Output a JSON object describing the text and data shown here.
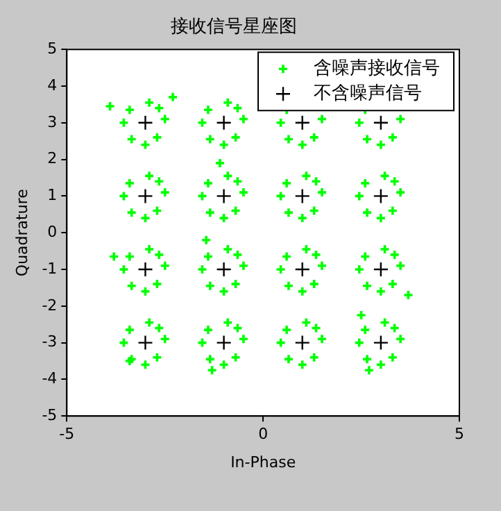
{
  "chart_data": {
    "type": "scatter",
    "title": "接收信号星座图",
    "xlabel": "In-Phase",
    "ylabel": "Quadrature",
    "xlim": [
      -5,
      5
    ],
    "xticks": [
      -5,
      0,
      5
    ],
    "ylim": [
      -5,
      5
    ],
    "yticks": [
      -5,
      -4,
      -3,
      -2,
      -1,
      0,
      1,
      2,
      3,
      4,
      5
    ],
    "grid": false,
    "legend": "top right",
    "series": [
      {
        "name": "含噪声接收信号",
        "color": "#00ff00",
        "marker": "cross",
        "x": [
          -2.5,
          -3.55,
          -2.9,
          -3,
          -2.65,
          -3.4,
          -2.7,
          -3.35,
          -0.5,
          -1.55,
          -0.9,
          -1,
          -0.65,
          -1.4,
          -0.7,
          -1.35,
          1.5,
          0.45,
          1,
          0.6,
          1.3,
          0.65,
          3.5,
          2.45,
          3,
          2.6,
          3.3,
          2.65,
          -2.5,
          -3.55,
          -2.9,
          -3,
          -2.65,
          -3.4,
          -2.7,
          -3.35,
          -0.5,
          -1.55,
          -0.9,
          -1,
          -0.65,
          -1.4,
          -0.7,
          -1.35,
          1.5,
          0.45,
          1.1,
          1,
          1.35,
          0.6,
          1.3,
          0.65,
          3.5,
          2.45,
          3.1,
          3,
          3.35,
          2.6,
          3.3,
          2.65,
          -2.5,
          -3.55,
          -2.9,
          -3,
          -2.65,
          -3.4,
          -2.7,
          -3.35,
          -0.5,
          -1.55,
          -0.9,
          -1,
          -0.65,
          -1.4,
          -0.7,
          -1.35,
          1.5,
          0.45,
          1.1,
          1,
          1.35,
          0.6,
          1.3,
          0.65,
          3.5,
          2.45,
          3.1,
          3,
          3.35,
          2.6,
          3.3,
          2.65,
          -2.5,
          -3.55,
          -2.9,
          -3,
          -2.65,
          -3.4,
          -2.7,
          -3.35,
          -0.5,
          -1.55,
          -0.9,
          -1,
          -0.65,
          -1.4,
          -0.7,
          -1.35,
          1.5,
          0.45,
          1.1,
          1,
          1.35,
          0.6,
          1.3,
          0.65,
          3.5,
          2.45,
          3.1,
          3,
          3.35,
          2.6,
          3.3,
          2.65,
          -3.9,
          -2.3,
          -1.1,
          -1.45,
          3.7,
          2.5,
          -3.8,
          -3.4,
          -1.3,
          2.7
        ],
        "values": [
          3.1,
          3,
          3.55,
          2.4,
          3.4,
          3.35,
          2.6,
          2.55,
          3.1,
          3,
          3.55,
          2.4,
          3.4,
          3.35,
          2.6,
          2.55,
          3.1,
          3,
          2.4,
          3.35,
          2.6,
          2.55,
          3.1,
          3,
          2.4,
          3.35,
          2.6,
          2.55,
          1.1,
          1,
          1.55,
          0.4,
          1.4,
          1.35,
          0.6,
          0.55,
          1.1,
          1,
          1.55,
          0.4,
          1.4,
          1.35,
          0.6,
          0.55,
          1.1,
          1,
          1.55,
          0.4,
          1.4,
          1.35,
          0.6,
          0.55,
          1.1,
          1,
          1.55,
          0.4,
          1.4,
          1.35,
          0.6,
          0.55,
          -0.9,
          -1,
          -0.45,
          -1.6,
          -0.6,
          -0.65,
          -1.4,
          -1.45,
          -0.9,
          -1,
          -0.45,
          -1.6,
          -0.6,
          -0.65,
          -1.4,
          -1.45,
          -0.9,
          -1,
          -0.45,
          -1.6,
          -0.6,
          -0.65,
          -1.4,
          -1.45,
          -0.9,
          -1,
          -0.45,
          -1.6,
          -0.6,
          -0.65,
          -1.4,
          -1.45,
          -2.9,
          -3,
          -2.45,
          -3.6,
          -2.6,
          -2.65,
          -3.4,
          -3.45,
          -2.9,
          -3,
          -2.45,
          -3.6,
          -2.6,
          -2.65,
          -3.4,
          -3.45,
          -2.9,
          -3,
          -2.45,
          -3.6,
          -2.6,
          -2.65,
          -3.4,
          -3.45,
          -2.9,
          -3,
          -2.45,
          -3.6,
          -2.6,
          -2.65,
          -3.4,
          -3.45,
          3.45,
          3.7,
          1.9,
          -0.2,
          -1.7,
          -2.25,
          -0.65,
          -3.5,
          -3.75,
          -3.75
        ]
      },
      {
        "name": "不含噪声信号",
        "color": "#000000",
        "marker": "cross",
        "x": [
          -3,
          -1,
          1,
          3,
          -3,
          -1,
          1,
          3,
          -3,
          -1,
          1,
          3,
          -3,
          -1,
          1,
          3
        ],
        "values": [
          3,
          3,
          3,
          3,
          1,
          1,
          1,
          1,
          -1,
          -1,
          -1,
          -1,
          -3,
          -3,
          -3,
          -3
        ]
      }
    ]
  }
}
